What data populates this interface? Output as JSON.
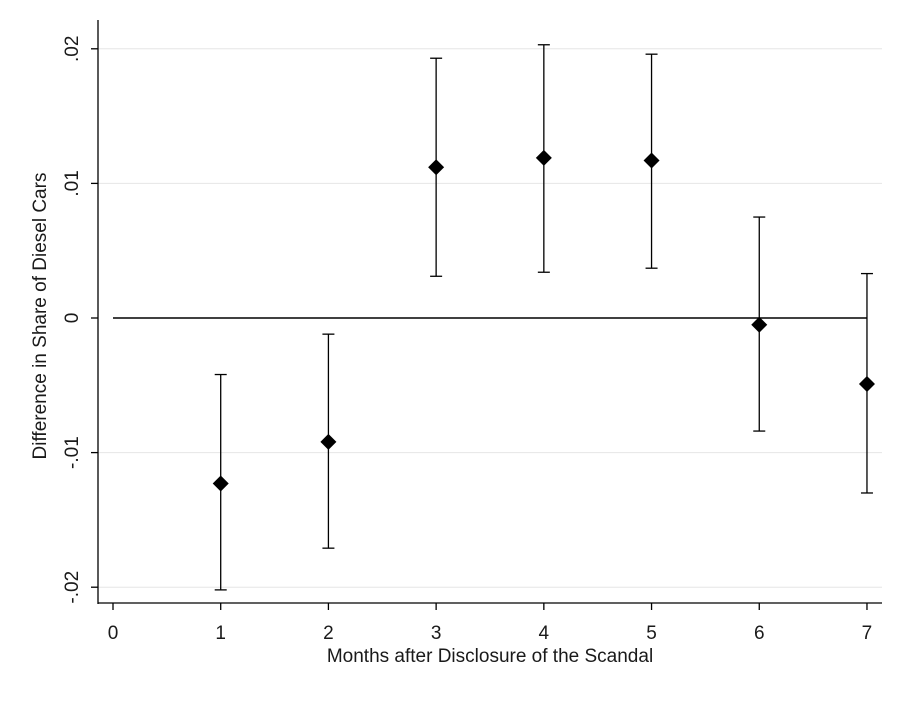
{
  "chart_data": {
    "type": "scatter",
    "subtype": "point-estimates-with-confidence-intervals",
    "title": "",
    "xlabel": "Months after Disclosure of the Scandal",
    "ylabel": "Difference in Share of Diesel Cars",
    "xlim": [
      0,
      7
    ],
    "ylim": [
      -0.02,
      0.02
    ],
    "x_ticks": [
      0,
      1,
      2,
      3,
      4,
      5,
      6,
      7
    ],
    "x_tick_labels": [
      "0",
      "1",
      "2",
      "3",
      "4",
      "5",
      "6",
      "7"
    ],
    "y_ticks": [
      -0.02,
      -0.01,
      0,
      0.01,
      0.02
    ],
    "y_tick_labels": [
      "-.02",
      "-.01",
      "0",
      ".01",
      ".02"
    ],
    "grid": "horizontal",
    "reference_line_y": 0,
    "marker": "diamond",
    "legend": "none",
    "colors": {
      "marker": "#000000",
      "error_bar": "#000000",
      "reference_line": "#000000",
      "grid": "#e6e6e6",
      "axis": "#000000",
      "background": "#ffffff"
    },
    "points": [
      {
        "x": 1,
        "y": -0.0123,
        "ci_low": -0.0202,
        "ci_high": -0.0042
      },
      {
        "x": 2,
        "y": -0.0092,
        "ci_low": -0.0171,
        "ci_high": -0.0012
      },
      {
        "x": 3,
        "y": 0.0112,
        "ci_low": 0.0031,
        "ci_high": 0.0193
      },
      {
        "x": 4,
        "y": 0.0119,
        "ci_low": 0.0034,
        "ci_high": 0.0203
      },
      {
        "x": 5,
        "y": 0.0117,
        "ci_low": 0.0037,
        "ci_high": 0.0196
      },
      {
        "x": 6,
        "y": -0.0005,
        "ci_low": -0.0084,
        "ci_high": 0.0075
      },
      {
        "x": 7,
        "y": -0.0049,
        "ci_low": -0.013,
        "ci_high": 0.0033
      }
    ]
  }
}
